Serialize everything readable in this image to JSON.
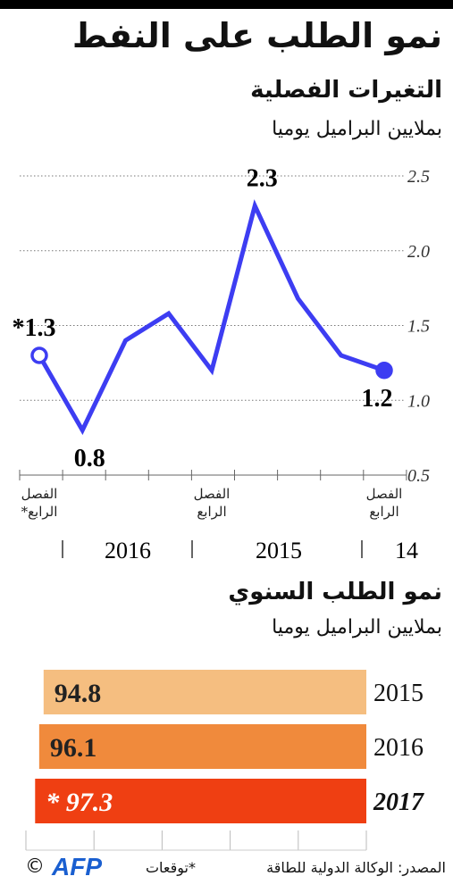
{
  "title": "نمو الطلب على النفط",
  "chart_data": [
    {
      "type": "line",
      "title": "التغيرات الفصلية",
      "subtitle": "بملايين البراميل يوميا",
      "categories": [
        "الفصل الرابع",
        null,
        null,
        null,
        "الفصل الرابع",
        null,
        null,
        null,
        "الفصل الرابع*"
      ],
      "year_labels": [
        "14",
        "2015",
        "2016"
      ],
      "series": [
        {
          "name": null,
          "color": "#3d3df2",
          "values": [
            1.2,
            1.3,
            1.68,
            2.3,
            1.2,
            1.58,
            1.4,
            0.8,
            1.3
          ],
          "value_labels": [
            "1.2",
            null,
            null,
            "2.3",
            null,
            null,
            null,
            "0.8",
            "*1.3"
          ],
          "open_markers": [
            8
          ]
        }
      ],
      "ylim": [
        0.5,
        2.5
      ],
      "yticks": [
        0.5,
        {
          "value": 1,
          "label": "1.0"
        },
        1.5,
        {
          "value": 2,
          "label": "2.0"
        },
        2.5
      ],
      "grid": true
    },
    {
      "type": "hbar",
      "title": "نمو الطلب السنوي",
      "subtitle": "بملايين البراميل يوميا",
      "categories": [
        "2015",
        "2016",
        "2017"
      ],
      "values": [
        94.8,
        96.1,
        97.3
      ],
      "value_labels": [
        "94.8",
        "96.1",
        "* 97.3"
      ],
      "colors": [
        "#f5be80",
        "#f08a3c",
        "#ef3f12"
      ],
      "italic": [
        false,
        false,
        true
      ],
      "xlim": [
        0,
        100
      ],
      "xticks": [
        0,
        20,
        40,
        60,
        80,
        100
      ]
    }
  ],
  "footer": {
    "source": "المصدر: الوكالة الدولية للطاقة",
    "note": "*توقعات",
    "credit": "AFP",
    "copyright": "©"
  }
}
